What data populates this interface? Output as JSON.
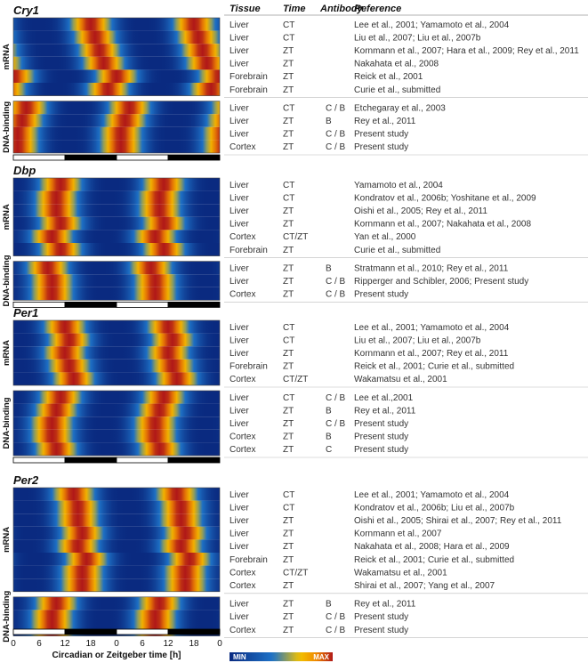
{
  "chart_data": {
    "type": "heatmap",
    "xlabel": "Circadian or Zeitgeber time [h]",
    "x_ticks": [
      "0",
      "6",
      "12",
      "18",
      "0",
      "6",
      "12",
      "18",
      "0"
    ],
    "columns": [
      "Tissue",
      "Time",
      "Antibody",
      "Reference"
    ],
    "colorbar": {
      "min_label": "MIN",
      "max_label": "MAX"
    },
    "colors": [
      "#0a2a80",
      "#1e73c8",
      "#f2c200",
      "#f08a00",
      "#b01818"
    ],
    "light_dark_bar": [
      "light",
      "dark",
      "light",
      "dark"
    ],
    "panels": [
      {
        "gene": "Cry1",
        "groups": [
          {
            "label": "mRNA",
            "rows": [
              {
                "tissue": "Liver",
                "time": "CT",
                "antibody": "",
                "reference": "Lee et al., 2001; Yamamoto et al., 2004",
                "peak": 18
              },
              {
                "tissue": "Liver",
                "time": "CT",
                "antibody": "",
                "reference": "Liu et al., 2007; Liu et al., 2007b",
                "peak": 19
              },
              {
                "tissue": "Liver",
                "time": "ZT",
                "antibody": "",
                "reference": "Kornmann et al., 2007; Hara et al., 2009; Rey et al., 2011",
                "peak": 20
              },
              {
                "tissue": "Liver",
                "time": "ZT",
                "antibody": "",
                "reference": "Nakahata et al., 2008",
                "peak": 21
              },
              {
                "tissue": "Forebrain",
                "time": "ZT",
                "antibody": "",
                "reference": "Reick et al., 2001",
                "peak": 0
              },
              {
                "tissue": "Forebrain",
                "time": "ZT",
                "antibody": "",
                "reference": "Curie et al., submitted",
                "peak": 22
              }
            ]
          },
          {
            "label": "DNA-binding",
            "rows": [
              {
                "tissue": "Liver",
                "time": "CT",
                "antibody": "C / B",
                "reference": "Etchegaray et al., 2003",
                "peak": 3
              },
              {
                "tissue": "Liver",
                "time": "ZT",
                "antibody": "B",
                "reference": "Rey et al., 2011",
                "peak": 2
              },
              {
                "tissue": "Liver",
                "time": "ZT",
                "antibody": "C / B",
                "reference": "Present study",
                "peak": 1
              },
              {
                "tissue": "Cortex",
                "time": "ZT",
                "antibody": "C / B",
                "reference": "Present study",
                "peak": 1
              }
            ]
          }
        ]
      },
      {
        "gene": "Dbp",
        "groups": [
          {
            "label": "mRNA",
            "rows": [
              {
                "tissue": "Liver",
                "time": "CT",
                "antibody": "",
                "reference": "Yamamoto et al., 2004",
                "peak": 11
              },
              {
                "tissue": "Liver",
                "time": "CT",
                "antibody": "",
                "reference": "Kondratov et al., 2006b;  Yoshitane et al., 2009",
                "peak": 10
              },
              {
                "tissue": "Liver",
                "time": "ZT",
                "antibody": "",
                "reference": "Oishi et al., 2005;  Rey et al., 2011",
                "peak": 10
              },
              {
                "tissue": "Liver",
                "time": "ZT",
                "antibody": "",
                "reference": "Kornmann et al., 2007; Nakahata et al., 2008",
                "peak": 11
              },
              {
                "tissue": "Cortex",
                "time": "CT/ZT",
                "antibody": "",
                "reference": "Yan et al., 2000",
                "peak": 9
              },
              {
                "tissue": "Forebrain",
                "time": "ZT",
                "antibody": "",
                "reference": "Curie et al., submitted",
                "peak": 11
              }
            ]
          },
          {
            "label": "DNA-binding",
            "rows": [
              {
                "tissue": "Liver",
                "time": "ZT",
                "antibody": "B",
                "reference": "Stratmann et al., 2010; Rey et al., 2011",
                "peak": 8
              },
              {
                "tissue": "Liver",
                "time": "ZT",
                "antibody": "C / B",
                "reference": "Ripperger and Schibler, 2006; Present study",
                "peak": 9
              },
              {
                "tissue": "Cortex",
                "time": "ZT",
                "antibody": "C / B",
                "reference": "Present study",
                "peak": 9
              }
            ]
          }
        ]
      },
      {
        "gene": "Per1",
        "groups": [
          {
            "label": "mRNA",
            "rows": [
              {
                "tissue": "Liver",
                "time": "CT",
                "antibody": "",
                "reference": "Lee et al., 2001; Yamamoto et al., 2004",
                "peak": 12
              },
              {
                "tissue": "Liver",
                "time": "CT",
                "antibody": "",
                "reference": "Liu et al., 2007; Liu et al., 2007b",
                "peak": 13
              },
              {
                "tissue": "Liver",
                "time": "ZT",
                "antibody": "",
                "reference": "Kornmann et al., 2007; Rey et al., 2011",
                "peak": 12
              },
              {
                "tissue": "Forebrain",
                "time": "ZT",
                "antibody": "",
                "reference": "Reick et al., 2001; Curie et al., submitted",
                "peak": 13
              },
              {
                "tissue": "Cortex",
                "time": "CT/ZT",
                "antibody": "",
                "reference": "Wakamatsu et al., 2001",
                "peak": 14
              }
            ]
          },
          {
            "label": "DNA-binding",
            "rows": [
              {
                "tissue": "Liver",
                "time": "CT",
                "antibody": "C / B",
                "reference": "Lee et al.,2001",
                "peak": 11
              },
              {
                "tissue": "Liver",
                "time": "ZT",
                "antibody": "B",
                "reference": "Rey et al., 2011",
                "peak": 10
              },
              {
                "tissue": "Liver",
                "time": "ZT",
                "antibody": "C / B",
                "reference": "Present study",
                "peak": 9
              },
              {
                "tissue": "Cortex",
                "time": "ZT",
                "antibody": "B",
                "reference": "Present study",
                "peak": 9
              },
              {
                "tissue": "Cortex",
                "time": "ZT",
                "antibody": "C",
                "reference": "Present study",
                "peak": 10
              }
            ]
          }
        ]
      },
      {
        "gene": "Per2",
        "groups": [
          {
            "label": "mRNA",
            "rows": [
              {
                "tissue": "Liver",
                "time": "CT",
                "antibody": "",
                "reference": "Lee et al., 2001;  Yamamoto et al., 2004",
                "peak": 14
              },
              {
                "tissue": "Liver",
                "time": "CT",
                "antibody": "",
                "reference": "Kondratov et al., 2006b; Liu et al., 2007b",
                "peak": 15
              },
              {
                "tissue": "Liver",
                "time": "ZT",
                "antibody": "",
                "reference": "Oishi et al., 2005; Shirai et al., 2007; Rey et al., 2011",
                "peak": 15
              },
              {
                "tissue": "Liver",
                "time": "ZT",
                "antibody": "",
                "reference": "Kornmann et al., 2007",
                "peak": 16
              },
              {
                "tissue": "Liver",
                "time": "ZT",
                "antibody": "",
                "reference": "Nakahata et al., 2008; Hara et al., 2009",
                "peak": 15
              },
              {
                "tissue": "Forebrain",
                "time": "ZT",
                "antibody": "",
                "reference": "Reick et al., 2001; Curie et al., submitted",
                "peak": 17
              },
              {
                "tissue": "Cortex",
                "time": "CT/ZT",
                "antibody": "",
                "reference": "Wakamatsu et al., 2001",
                "peak": 16
              },
              {
                "tissue": "Cortex",
                "time": "ZT",
                "antibody": "",
                "reference": "Shirai et al., 2007; Yang et al., 2007",
                "peak": 16
              }
            ]
          },
          {
            "label": "DNA-binding",
            "rows": [
              {
                "tissue": "Liver",
                "time": "ZT",
                "antibody": "B",
                "reference": "Rey et al., 2011",
                "peak": 10
              },
              {
                "tissue": "Liver",
                "time": "ZT",
                "antibody": "C / B",
                "reference": "Present study",
                "peak": 9
              },
              {
                "tissue": "Cortex",
                "time": "ZT",
                "antibody": "C / B",
                "reference": "Present study",
                "peak": 9
              }
            ]
          }
        ]
      }
    ]
  }
}
